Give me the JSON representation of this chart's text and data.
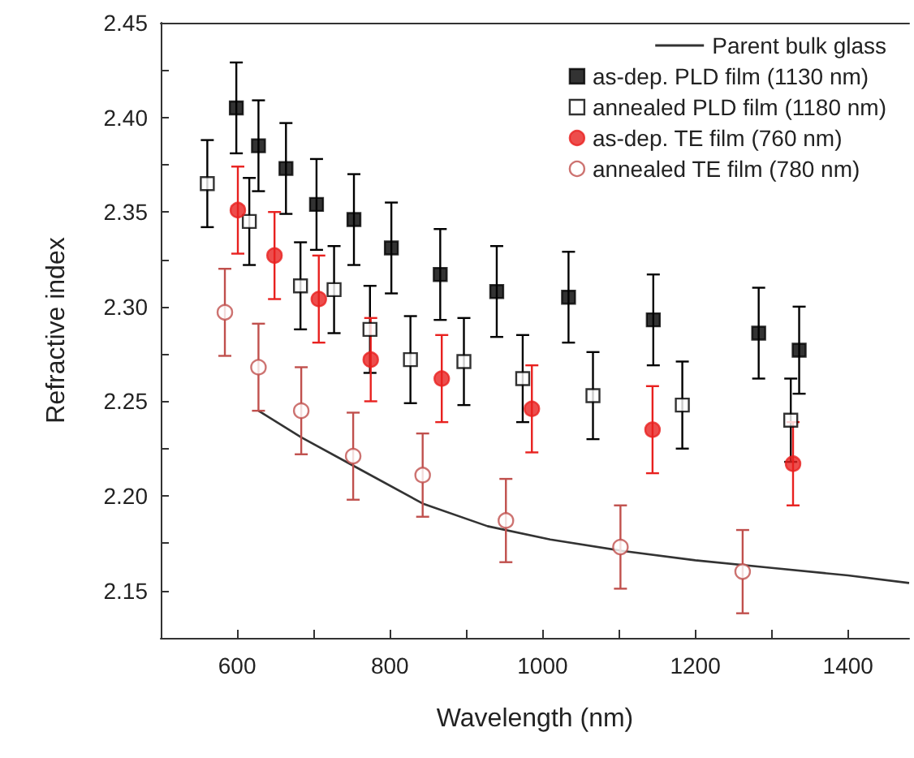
{
  "chart_data": {
    "type": "scatter",
    "xlabel": "Wavelength (nm)",
    "ylabel": "Refractive index",
    "xlim": [
      500,
      1480
    ],
    "xticks": [
      600,
      {
        "value": 700,
        "label": null
      },
      800,
      {
        "value": 900,
        "label": null
      },
      1000,
      {
        "value": 1100,
        "label": null
      },
      1200,
      {
        "value": 1300,
        "label": null
      },
      1400
    ],
    "ylim": [
      2.125,
      2.45
    ],
    "yticks": [
      2.15,
      {
        "value": 2.175,
        "label": null
      },
      {
        "value": 2.2,
        "label": "2.20"
      },
      {
        "value": 2.225,
        "label": null
      },
      2.25,
      {
        "value": 2.275,
        "label": null
      },
      {
        "value": 2.3,
        "label": "2.30"
      },
      {
        "value": 2.325,
        "label": null
      },
      2.35,
      {
        "value": 2.375,
        "label": null
      },
      {
        "value": 2.4,
        "label": "2.40"
      },
      {
        "value": 2.425,
        "label": null
      },
      2.45
    ],
    "grid": false,
    "legend": "top right",
    "series": [
      {
        "name": "Parent bulk glass",
        "type": "line",
        "color": "#333333",
        "marker": "none",
        "line_style": "solid",
        "x": [
          628,
          684,
          752,
          843,
          928,
          1010,
          1104,
          1200,
          1300,
          1400,
          1480
        ],
        "values": [
          2.245,
          2.231,
          2.216,
          2.196,
          2.184,
          2.177,
          2.171,
          2.166,
          2.162,
          2.158,
          2.154
        ]
      },
      {
        "name": "as-dep. PLD film (1130 nm)",
        "color": "#000000",
        "marker": "square",
        "x": [
          599,
          628,
          664,
          704,
          753,
          802,
          866,
          940,
          1034,
          1145,
          1283,
          1336
        ],
        "values": [
          2.405,
          2.385,
          2.373,
          2.354,
          2.346,
          2.331,
          2.317,
          2.308,
          2.305,
          2.293,
          2.286,
          2.277
        ],
        "errors": [
          0.024,
          0.024,
          0.024,
          0.024,
          0.024,
          0.024,
          0.024,
          0.024,
          0.024,
          0.024,
          0.024,
          0.023
        ]
      },
      {
        "name": "annealed PLD film (1180 nm)",
        "color": "#000000",
        "marker": "square",
        "x": [
          561,
          616,
          683,
          727,
          774,
          827,
          897,
          974,
          1066,
          1183,
          1325
        ],
        "values": [
          2.365,
          2.345,
          2.311,
          2.309,
          2.288,
          2.272,
          2.271,
          2.262,
          2.253,
          2.248,
          2.24
        ],
        "errors": [
          0.023,
          0.023,
          0.023,
          0.023,
          0.023,
          0.023,
          0.023,
          0.023,
          0.023,
          0.023,
          0.022
        ]
      },
      {
        "name": "as-dep. TE film (760 nm)",
        "color": "#e8211f",
        "marker": "circle",
        "x": [
          601,
          649,
          707,
          775,
          868,
          986,
          1144,
          1328
        ],
        "values": [
          2.351,
          2.327,
          2.304,
          2.272,
          2.262,
          2.246,
          2.235,
          2.217
        ],
        "errors": [
          0.023,
          0.023,
          0.023,
          0.022,
          0.023,
          0.023,
          0.023,
          0.022
        ]
      },
      {
        "name": "annealed TE film (780 nm)",
        "color": "#c0504d",
        "marker": "circle",
        "x": [
          584,
          628,
          684,
          752,
          843,
          952,
          1102,
          1262
        ],
        "values": [
          2.297,
          2.268,
          2.245,
          2.221,
          2.211,
          2.187,
          2.173,
          2.16
        ],
        "errors": [
          0.023,
          0.023,
          0.023,
          0.023,
          0.022,
          0.022,
          0.022,
          0.022
        ]
      }
    ]
  }
}
